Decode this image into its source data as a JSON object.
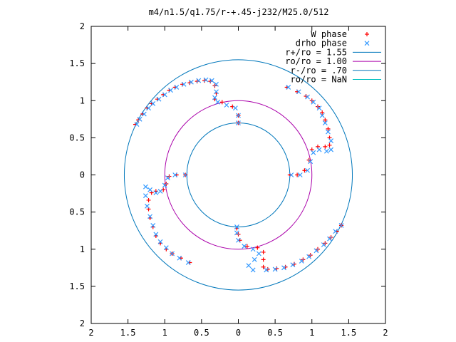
{
  "chart_data": {
    "type": "scatter",
    "title": "m4/n1.5/q1.75/r-+.45-j232/M25.0/512",
    "xlabel": "",
    "ylabel": "",
    "xlim": [
      -2,
      2
    ],
    "ylim": [
      -2,
      2
    ],
    "x_ticks": [
      {
        "value": -2,
        "label": "2"
      },
      {
        "value": -1.5,
        "label": "1.5"
      },
      {
        "value": -1,
        "label": "1"
      },
      {
        "value": -0.5,
        "label": "0.5"
      },
      {
        "value": 0,
        "label": "0"
      },
      {
        "value": 0.5,
        "label": "0.5"
      },
      {
        "value": 1,
        "label": "1"
      },
      {
        "value": 1.5,
        "label": "1.5"
      },
      {
        "value": 2,
        "label": "2"
      }
    ],
    "y_ticks": [
      {
        "value": 2,
        "label": "2"
      },
      {
        "value": 1.5,
        "label": "1.5"
      },
      {
        "value": 1,
        "label": "1"
      },
      {
        "value": 0.5,
        "label": "0.5"
      },
      {
        "value": 0,
        "label": "0"
      },
      {
        "value": -0.5,
        "label": "0.5"
      },
      {
        "value": -1,
        "label": "1"
      },
      {
        "value": -1.5,
        "label": "1.5"
      },
      {
        "value": -2,
        "label": "2"
      }
    ],
    "grid": false,
    "legend_position": "top-right",
    "series": [
      {
        "name": "W phase",
        "kind": "points",
        "marker": "+",
        "color": "#ff0000",
        "points": [
          [
            -1.4,
            0.68
          ],
          [
            -1.36,
            0.74
          ],
          [
            -1.3,
            0.82
          ],
          [
            -1.24,
            0.9
          ],
          [
            -1.18,
            0.96
          ],
          [
            -1.1,
            1.02
          ],
          [
            -1.02,
            1.08
          ],
          [
            -0.94,
            1.14
          ],
          [
            -0.86,
            1.18
          ],
          [
            -0.76,
            1.22
          ],
          [
            -0.66,
            1.24
          ],
          [
            -0.56,
            1.26
          ],
          [
            -0.46,
            1.27
          ],
          [
            -0.38,
            1.26
          ],
          [
            -0.32,
            1.2
          ],
          [
            -0.3,
            1.1
          ],
          [
            -0.32,
            1.02
          ],
          [
            -0.22,
            0.98
          ],
          [
            -0.08,
            0.92
          ],
          [
            0.0,
            0.8
          ],
          [
            0.0,
            0.7
          ],
          [
            0.66,
            1.18
          ],
          [
            0.8,
            1.12
          ],
          [
            0.92,
            1.06
          ],
          [
            1.0,
            1.0
          ],
          [
            1.08,
            0.92
          ],
          [
            1.14,
            0.84
          ],
          [
            1.18,
            0.74
          ],
          [
            1.22,
            0.62
          ],
          [
            1.24,
            0.5
          ],
          [
            1.24,
            0.4
          ],
          [
            1.18,
            0.38
          ],
          [
            1.08,
            0.38
          ],
          [
            1.0,
            0.34
          ],
          [
            0.96,
            0.2
          ],
          [
            0.9,
            0.06
          ],
          [
            0.8,
            0.0
          ],
          [
            0.7,
            0.0
          ],
          [
            1.4,
            -0.68
          ],
          [
            1.34,
            -0.76
          ],
          [
            1.26,
            -0.84
          ],
          [
            1.18,
            -0.92
          ],
          [
            1.08,
            -1.0
          ],
          [
            0.98,
            -1.08
          ],
          [
            0.88,
            -1.14
          ],
          [
            0.76,
            -1.2
          ],
          [
            0.64,
            -1.24
          ],
          [
            0.52,
            -1.26
          ],
          [
            0.4,
            -1.27
          ],
          [
            0.34,
            -1.24
          ],
          [
            0.34,
            -1.14
          ],
          [
            0.34,
            -1.04
          ],
          [
            0.26,
            -0.98
          ],
          [
            0.12,
            -0.96
          ],
          [
            0.02,
            -0.88
          ],
          [
            0.0,
            -0.8
          ],
          [
            -0.02,
            -0.72
          ],
          [
            -0.66,
            -1.18
          ],
          [
            -0.78,
            -1.12
          ],
          [
            -0.9,
            -1.06
          ],
          [
            -0.98,
            -1.0
          ],
          [
            -1.06,
            -0.92
          ],
          [
            -1.12,
            -0.82
          ],
          [
            -1.16,
            -0.7
          ],
          [
            -1.2,
            -0.58
          ],
          [
            -1.22,
            -0.46
          ],
          [
            -1.22,
            -0.34
          ],
          [
            -1.18,
            -0.24
          ],
          [
            -1.12,
            -0.22
          ],
          [
            -1.02,
            -0.2
          ],
          [
            -0.98,
            -0.12
          ],
          [
            -0.94,
            -0.02
          ],
          [
            -0.84,
            0.0
          ],
          [
            -0.72,
            0.0
          ]
        ]
      },
      {
        "name": "drho phase",
        "kind": "points",
        "marker": "x",
        "color": "#3399ff",
        "points": [
          [
            -1.38,
            0.68
          ],
          [
            -1.34,
            0.75
          ],
          [
            -1.28,
            0.82
          ],
          [
            -1.22,
            0.9
          ],
          [
            -1.16,
            0.96
          ],
          [
            -1.08,
            1.02
          ],
          [
            -1.0,
            1.08
          ],
          [
            -0.92,
            1.14
          ],
          [
            -0.84,
            1.18
          ],
          [
            -0.74,
            1.22
          ],
          [
            -0.64,
            1.25
          ],
          [
            -0.54,
            1.27
          ],
          [
            -0.44,
            1.28
          ],
          [
            -0.36,
            1.27
          ],
          [
            -0.3,
            1.22
          ],
          [
            -0.3,
            1.12
          ],
          [
            -0.32,
            1.04
          ],
          [
            -0.28,
            0.98
          ],
          [
            -0.16,
            0.94
          ],
          [
            -0.04,
            0.9
          ],
          [
            0.0,
            0.8
          ],
          [
            0.0,
            0.7
          ],
          [
            0.68,
            1.18
          ],
          [
            0.82,
            1.12
          ],
          [
            0.94,
            1.05
          ],
          [
            1.02,
            0.98
          ],
          [
            1.1,
            0.9
          ],
          [
            1.14,
            0.8
          ],
          [
            1.18,
            0.7
          ],
          [
            1.22,
            0.58
          ],
          [
            1.26,
            0.46
          ],
          [
            1.26,
            0.34
          ],
          [
            1.2,
            0.32
          ],
          [
            1.1,
            0.34
          ],
          [
            1.02,
            0.3
          ],
          [
            0.98,
            0.18
          ],
          [
            0.94,
            0.06
          ],
          [
            0.84,
            0.0
          ],
          [
            0.72,
            0.0
          ],
          [
            1.4,
            -0.68
          ],
          [
            1.32,
            -0.76
          ],
          [
            1.24,
            -0.86
          ],
          [
            1.16,
            -0.94
          ],
          [
            1.06,
            -1.02
          ],
          [
            0.96,
            -1.1
          ],
          [
            0.86,
            -1.16
          ],
          [
            0.74,
            -1.21
          ],
          [
            0.62,
            -1.25
          ],
          [
            0.5,
            -1.27
          ],
          [
            0.38,
            -1.28
          ],
          [
            0.2,
            -1.28
          ],
          [
            0.14,
            -1.22
          ],
          [
            0.22,
            -1.14
          ],
          [
            0.28,
            -1.06
          ],
          [
            0.2,
            -1.0
          ],
          [
            0.08,
            -0.96
          ],
          [
            0.0,
            -0.88
          ],
          [
            -0.02,
            -0.78
          ],
          [
            -0.02,
            -0.7
          ],
          [
            -0.68,
            -1.18
          ],
          [
            -0.8,
            -1.12
          ],
          [
            -0.9,
            -1.06
          ],
          [
            -0.98,
            -0.98
          ],
          [
            -1.06,
            -0.9
          ],
          [
            -1.12,
            -0.8
          ],
          [
            -1.16,
            -0.68
          ],
          [
            -1.2,
            -0.56
          ],
          [
            -1.24,
            -0.42
          ],
          [
            -1.26,
            -0.28
          ],
          [
            -1.26,
            -0.16
          ],
          [
            -1.2,
            -0.2
          ],
          [
            -1.12,
            -0.24
          ],
          [
            -1.06,
            -0.22
          ],
          [
            -1.0,
            -0.14
          ],
          [
            -0.96,
            -0.04
          ],
          [
            -0.86,
            0.0
          ],
          [
            -0.72,
            0.0
          ]
        ]
      },
      {
        "name": "r+/ro = 1.55",
        "kind": "circle",
        "r": 1.55,
        "color": "#0077bb"
      },
      {
        "name": "ro/ro = 1.00",
        "kind": "circle",
        "r": 1.0,
        "color": "#aa00aa"
      },
      {
        "name": "r-/ro = .70",
        "kind": "circle",
        "r": 0.7,
        "color": "#0077bb"
      },
      {
        "name": "ro/ro = NaN",
        "kind": "line",
        "color": "#00c0c0"
      }
    ]
  }
}
